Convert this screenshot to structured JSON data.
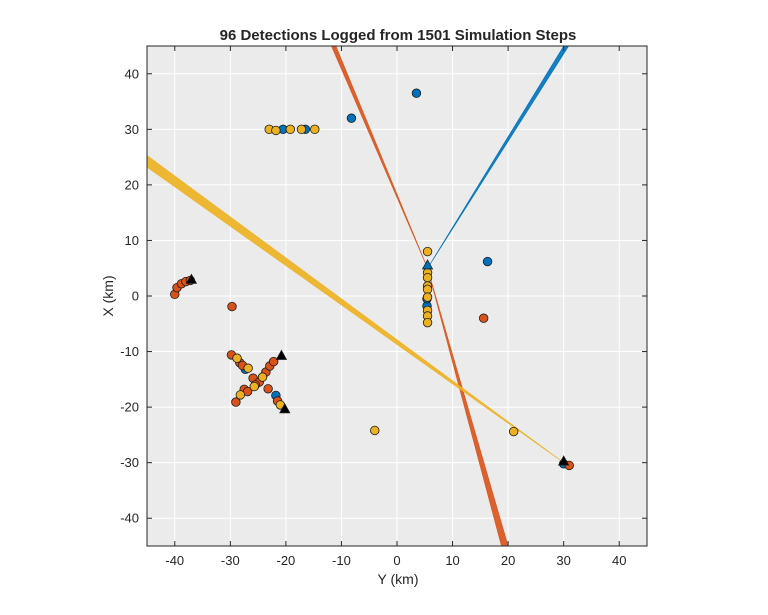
{
  "chart_data": {
    "type": "scatter",
    "title": "96 Detections Logged from 1501 Simulation Steps",
    "xlabel": "Y (km)",
    "ylabel": "X (km)",
    "xlim": [
      -45,
      45
    ],
    "ylim": [
      -45,
      45
    ],
    "xticks": [
      -40,
      -30,
      -20,
      -10,
      0,
      10,
      20,
      30,
      40
    ],
    "yticks": [
      -40,
      -30,
      -20,
      -10,
      0,
      10,
      20,
      30,
      40
    ],
    "grid": true,
    "colors": {
      "blue": "#0072BD",
      "orange": "#D95319",
      "yellow": "#EDB120",
      "background": "#EBEBEB",
      "grid": "#FFFFFF"
    },
    "beams": [
      {
        "color": "orange",
        "origin": [
          5.5,
          5.0
        ],
        "ends": [
          [
            -11.8,
            45.0
          ],
          [
            -11.0,
            45.0
          ]
        ],
        "far_ends": [
          [
            18.8,
            -45.0
          ],
          [
            20.0,
            -45.0
          ]
        ]
      },
      {
        "color": "blue",
        "origin": [
          5.5,
          5.0
        ],
        "ends": [
          [
            30.0,
            45.0
          ],
          [
            30.9,
            45.0
          ]
        ]
      },
      {
        "color": "yellow",
        "origin": [
          30.0,
          -30.0
        ],
        "ends": [
          [
            -45.0,
            25.3
          ],
          [
            -45.0,
            23.2
          ]
        ]
      }
    ],
    "series": [
      {
        "color": "blue",
        "points": [
          [
            3.5,
            36.5
          ],
          [
            -8.2,
            32.0
          ],
          [
            16.3,
            6.2
          ],
          [
            -20.5,
            30.0
          ],
          [
            -16.5,
            30.0
          ],
          [
            -27.3,
            -13.2
          ],
          [
            -21.8,
            -17.9
          ],
          [
            5.4,
            -1.8
          ],
          [
            5.4,
            -0.5
          ],
          [
            30.0,
            -30.2
          ]
        ]
      },
      {
        "color": "orange",
        "points": [
          [
            -40.0,
            0.3
          ],
          [
            -39.6,
            1.5
          ],
          [
            -38.8,
            2.2
          ],
          [
            -38.0,
            2.6
          ],
          [
            -37.2,
            2.8
          ],
          [
            -29.7,
            -1.9
          ],
          [
            -29.8,
            -10.6
          ],
          [
            -28.3,
            -12.0
          ],
          [
            -27.8,
            -12.5
          ],
          [
            -25.9,
            -14.8
          ],
          [
            -24.8,
            -15.5
          ],
          [
            -23.6,
            -13.7
          ],
          [
            -22.9,
            -12.6
          ],
          [
            -22.2,
            -11.8
          ],
          [
            -23.2,
            -16.7
          ],
          [
            -25.5,
            -16.0
          ],
          [
            -27.5,
            -16.8
          ],
          [
            -26.9,
            -17.2
          ],
          [
            -29.0,
            -19.1
          ],
          [
            -21.5,
            -18.9
          ],
          [
            15.6,
            -4.0
          ],
          [
            31.0,
            -30.5
          ]
        ]
      },
      {
        "color": "yellow",
        "points": [
          [
            -23.0,
            30.0
          ],
          [
            -21.8,
            29.8
          ],
          [
            -19.2,
            30.0
          ],
          [
            -17.2,
            30.0
          ],
          [
            -14.8,
            30.0
          ],
          [
            5.5,
            8.0
          ],
          [
            5.5,
            4.2
          ],
          [
            5.5,
            3.3
          ],
          [
            5.5,
            1.8
          ],
          [
            5.5,
            1.2
          ],
          [
            5.5,
            -0.2
          ],
          [
            5.5,
            -2.6
          ],
          [
            5.5,
            -3.6
          ],
          [
            5.5,
            -4.8
          ],
          [
            -28.8,
            -11.2
          ],
          [
            -26.8,
            -13.0
          ],
          [
            -24.2,
            -14.6
          ],
          [
            -28.2,
            -17.8
          ],
          [
            -25.7,
            -16.3
          ],
          [
            -21.0,
            -19.6
          ],
          [
            -4.0,
            -24.2
          ],
          [
            21.0,
            -24.4
          ]
        ]
      }
    ],
    "markers": [
      {
        "color": "blue",
        "shape": "triangle",
        "position": [
          5.5,
          5.5
        ]
      },
      {
        "color": "black",
        "shape": "triangle",
        "position": [
          -37.0,
          2.9
        ]
      },
      {
        "color": "black",
        "shape": "triangle",
        "position": [
          -20.8,
          -10.8
        ]
      },
      {
        "color": "black",
        "shape": "triangle",
        "position": [
          -20.2,
          -20.4
        ]
      },
      {
        "color": "black",
        "shape": "triangle",
        "position": [
          30.0,
          -29.8
        ]
      }
    ]
  }
}
